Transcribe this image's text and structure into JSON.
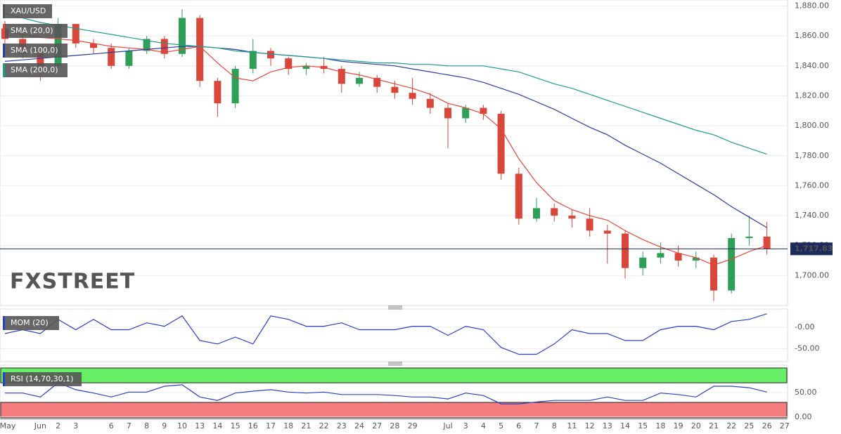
{
  "chart_data": [
    {
      "type": "candlestick",
      "symbol": "XAU/USD",
      "watermark": "FXSTREET",
      "categories": [
        "May",
        null,
        "Jun",
        "2",
        "3",
        null,
        "6",
        "7",
        "8",
        "9",
        "10",
        "13",
        "14",
        "15",
        "16",
        "17",
        "18",
        "21",
        "22",
        "23",
        "24",
        "27",
        "28",
        "29",
        null,
        "Jul",
        "3",
        "4",
        "5",
        "6",
        "7",
        "8",
        "11",
        "12",
        "13",
        "14",
        "15",
        "18",
        "19",
        "20",
        "21",
        "22",
        "25",
        "26",
        "27"
      ],
      "open": [
        1865,
        1858,
        1848,
        1840,
        1868,
        1855,
        1852,
        1840,
        1850,
        1858,
        1848,
        1872,
        1830,
        1815,
        1838,
        1850,
        1845,
        1838,
        1840,
        1838,
        1828,
        1832,
        1826,
        1822,
        1818,
        1812,
        1805,
        1812,
        1808,
        1768,
        1738,
        1745,
        1740,
        1738,
        1730,
        1728,
        1705,
        1712,
        1715,
        1710,
        1712,
        1690,
        1725,
        1726,
        null
      ],
      "high": [
        1870,
        1862,
        1850,
        1872,
        1868,
        1858,
        1855,
        1852,
        1860,
        1860,
        1878,
        1874,
        1832,
        1840,
        1858,
        1852,
        1846,
        1842,
        1846,
        1840,
        1836,
        1834,
        1830,
        1832,
        1822,
        1815,
        1814,
        1814,
        1810,
        1772,
        1752,
        1748,
        1744,
        1745,
        1734,
        1730,
        1716,
        1722,
        1720,
        1716,
        1714,
        1728,
        1740,
        1736,
        null
      ],
      "low": [
        1855,
        1845,
        1830,
        1838,
        1852,
        1848,
        1838,
        1838,
        1848,
        1845,
        1846,
        1826,
        1806,
        1812,
        1835,
        1840,
        1834,
        1834,
        1835,
        1822,
        1826,
        1822,
        1818,
        1814,
        1808,
        1785,
        1802,
        1804,
        1764,
        1734,
        1736,
        1736,
        1732,
        1726,
        1708,
        1698,
        1700,
        1708,
        1706,
        1705,
        1683,
        1688,
        1720,
        1714,
        null
      ],
      "close": [
        1858,
        1848,
        1840,
        1868,
        1855,
        1852,
        1840,
        1850,
        1858,
        1848,
        1872,
        1830,
        1815,
        1838,
        1850,
        1845,
        1838,
        1840,
        1838,
        1828,
        1832,
        1826,
        1822,
        1818,
        1812,
        1805,
        1812,
        1808,
        1768,
        1738,
        1745,
        1740,
        1738,
        1730,
        1728,
        1705,
        1712,
        1715,
        1710,
        1712,
        1690,
        1725,
        1726,
        1717.83,
        null
      ],
      "up_color": "#2f9e57",
      "down_color": "#d9463a",
      "series": [
        {
          "name": "SMA (20,0)",
          "color": "#e8453c",
          "values": [
            1863,
            1861,
            1859,
            1858,
            1857,
            1855,
            1853,
            1852,
            1851,
            1849,
            1851,
            1853,
            1842,
            1832,
            1830,
            1836,
            1839,
            1840,
            1839,
            1836,
            1834,
            1831,
            1828,
            1825,
            1821,
            1815,
            1812,
            1808,
            1798,
            1778,
            1762,
            1750,
            1744,
            1740,
            1737,
            1730,
            1724,
            1719,
            1715,
            1712,
            1707,
            1711,
            1716,
            1720,
            null
          ]
        },
        {
          "name": "SMA (100,0)",
          "color": "#2b3d9e",
          "values": [
            1843,
            1844,
            1845,
            1846,
            1847,
            1848,
            1849,
            1850,
            1851,
            1852,
            1853,
            1853,
            1852,
            1851,
            1849,
            1848,
            1847,
            1846,
            1845,
            1843,
            1842,
            1841,
            1840,
            1838,
            1836,
            1834,
            1832,
            1829,
            1825,
            1821,
            1816,
            1811,
            1805,
            1799,
            1794,
            1787,
            1781,
            1775,
            1768,
            1761,
            1754,
            1746,
            1739,
            1732,
            null
          ]
        },
        {
          "name": "SMA (200,0)",
          "color": "#1e9e8a",
          "values": [
            1875,
            1872,
            1869,
            1867,
            1865,
            1863,
            1861,
            1859,
            1857,
            1855,
            1854,
            1853,
            1852,
            1850,
            1849,
            1848,
            1847,
            1846,
            1845,
            1844,
            1843,
            1842,
            1842,
            1841,
            1841,
            1840,
            1840,
            1840,
            1838,
            1836,
            1832,
            1828,
            1825,
            1821,
            1817,
            1813,
            1809,
            1805,
            1801,
            1797,
            1794,
            1789,
            1785,
            1781,
            null
          ]
        }
      ],
      "last_price": {
        "value": 1717.83,
        "label": "1,717.83"
      },
      "last_price_color": "#1c2a5c",
      "ylim": [
        1680,
        1884
      ],
      "yticks": [
        {
          "value": 1880,
          "label": "1,880.00"
        },
        {
          "value": 1860,
          "label": "1,860.00"
        },
        {
          "value": 1840,
          "label": "1,840.00"
        },
        {
          "value": 1820,
          "label": "1,820.00"
        },
        {
          "value": 1800,
          "label": "1,800.00"
        },
        {
          "value": 1780,
          "label": "1,780.00"
        },
        {
          "value": 1760,
          "label": "1,760.00"
        },
        {
          "value": 1740,
          "label": "1,740.00"
        },
        {
          "value": 1720,
          "label": "1,720.00"
        },
        {
          "value": 1700,
          "label": "1,700.00"
        }
      ],
      "grid": true
    },
    {
      "type": "line",
      "name": "MOM (20)",
      "color": "#2b3fc9",
      "values": [
        -15,
        -6,
        -15,
        18,
        -6,
        18,
        -6,
        -6,
        10,
        2,
        26,
        -31,
        -39,
        -23,
        -39,
        26,
        18,
        2,
        2,
        10,
        -6,
        -6,
        -6,
        2,
        2,
        -19,
        2,
        -6,
        -47,
        -63,
        -63,
        -39,
        -6,
        -15,
        -15,
        -31,
        -31,
        -6,
        2,
        2,
        -6,
        13,
        18,
        31,
        null
      ],
      "ylim": [
        -80,
        42
      ],
      "yticks": [
        {
          "value": 0,
          "label": "-0.00"
        },
        {
          "value": -50,
          "label": "-50.00"
        }
      ]
    },
    {
      "type": "line",
      "name": "RSI (14,70,30,1)",
      "color": "#2b3fc9",
      "values": [
        49,
        49,
        41,
        70,
        56,
        49,
        41,
        51,
        51,
        63,
        66,
        41,
        34,
        49,
        53,
        56,
        51,
        49,
        51,
        46,
        46,
        46,
        44,
        41,
        41,
        37,
        49,
        44,
        27,
        27,
        31,
        34,
        34,
        34,
        41,
        34,
        34,
        49,
        46,
        41,
        63,
        63,
        60,
        51,
        null
      ],
      "overbought": 70,
      "oversold": 30,
      "overbought_color": "#66ee66",
      "oversold_color": "#f57d7d",
      "ylim": [
        -3,
        106
      ],
      "yticks": [
        {
          "value": 50,
          "label": "50.00"
        },
        {
          "value": 0,
          "label": "0.00"
        }
      ]
    }
  ]
}
